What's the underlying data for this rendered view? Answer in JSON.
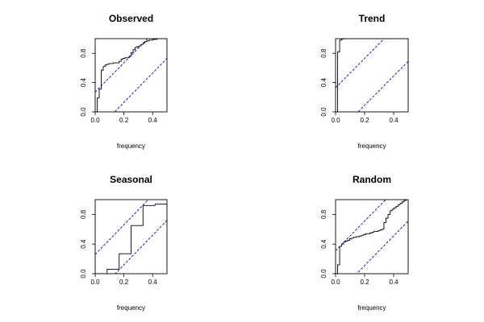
{
  "colors": {
    "frame": "#000000",
    "step": "#000000",
    "bound": "#0000cc",
    "background": "#ffffff"
  },
  "chart_data": [
    {
      "type": "line",
      "title": "Observed",
      "xlabel": "frequency",
      "ylabel": "",
      "xlim": [
        0,
        0.5
      ],
      "ylim": [
        0,
        1
      ],
      "xticks": [
        "0.0",
        "0.2",
        "0.4"
      ],
      "yticks": [
        "0.0",
        "0.4",
        "0.8"
      ],
      "series": [
        {
          "kind": "step",
          "x": [
            0.0,
            0.014,
            0.028,
            0.042,
            0.056,
            0.069,
            0.083,
            0.097,
            0.111,
            0.125,
            0.139,
            0.153,
            0.167,
            0.181,
            0.194,
            0.208,
            0.222,
            0.236,
            0.25,
            0.264,
            0.278,
            0.292,
            0.306,
            0.319,
            0.333,
            0.347,
            0.361,
            0.375,
            0.389,
            0.403,
            0.417,
            0.431,
            0.444,
            0.458,
            0.472,
            0.486,
            0.5
          ],
          "y": [
            0.0,
            0.19,
            0.31,
            0.57,
            0.62,
            0.64,
            0.65,
            0.66,
            0.66,
            0.67,
            0.67,
            0.67,
            0.69,
            0.72,
            0.73,
            0.74,
            0.74,
            0.76,
            0.81,
            0.85,
            0.88,
            0.89,
            0.9,
            0.92,
            0.94,
            0.96,
            0.97,
            0.98,
            0.98,
            0.99,
            0.99,
            1.0,
            1.0,
            1.0,
            1.0,
            1.0,
            1.0
          ]
        },
        {
          "kind": "bound",
          "x": [
            0,
            0.5
          ],
          "y": [
            0.27,
            1.27
          ]
        },
        {
          "kind": "bound",
          "x": [
            0,
            0.5
          ],
          "y": [
            -0.27,
            0.73
          ]
        }
      ]
    },
    {
      "type": "line",
      "title": "Trend",
      "xlabel": "frequency",
      "ylabel": "",
      "xlim": [
        0,
        0.5
      ],
      "ylim": [
        0,
        1
      ],
      "xticks": [
        "0.0",
        "0.2",
        "0.4"
      ],
      "yticks": [
        "0.0",
        "0.4",
        "0.8"
      ],
      "series": [
        {
          "kind": "step",
          "x": [
            0.0,
            0.014,
            0.028,
            0.042,
            0.056,
            0.5
          ],
          "y": [
            0.0,
            0.82,
            0.98,
            0.995,
            1.0,
            1.0
          ]
        },
        {
          "kind": "bound",
          "x": [
            0,
            0.5
          ],
          "y": [
            0.33,
            1.33
          ]
        },
        {
          "kind": "bound",
          "x": [
            0,
            0.5
          ],
          "y": [
            -0.31,
            0.69
          ]
        }
      ]
    },
    {
      "type": "line",
      "title": "Seasonal",
      "xlabel": "frequency",
      "ylabel": "",
      "xlim": [
        0,
        0.5
      ],
      "ylim": [
        0,
        1
      ],
      "xticks": [
        "0.0",
        "0.2",
        "0.4"
      ],
      "yticks": [
        "0.0",
        "0.4",
        "0.8"
      ],
      "series": [
        {
          "kind": "step",
          "x": [
            0.0,
            0.083,
            0.167,
            0.25,
            0.333,
            0.417,
            0.5
          ],
          "y": [
            0.0,
            0.06,
            0.27,
            0.65,
            0.92,
            0.94,
            0.94
          ]
        },
        {
          "kind": "bound",
          "x": [
            0,
            0.5
          ],
          "y": [
            0.26,
            1.26
          ]
        },
        {
          "kind": "bound",
          "x": [
            0,
            0.5
          ],
          "y": [
            -0.28,
            0.72
          ]
        }
      ]
    },
    {
      "type": "line",
      "title": "Random",
      "xlabel": "frequency",
      "ylabel": "",
      "xlim": [
        0,
        0.5
      ],
      "ylim": [
        0,
        1
      ],
      "xticks": [
        "0.0",
        "0.2",
        "0.4"
      ],
      "yticks": [
        "0.0",
        "0.4",
        "0.8"
      ],
      "series": [
        {
          "kind": "step",
          "x": [
            0.0,
            0.014,
            0.028,
            0.042,
            0.056,
            0.069,
            0.083,
            0.097,
            0.111,
            0.125,
            0.139,
            0.153,
            0.167,
            0.181,
            0.194,
            0.208,
            0.222,
            0.236,
            0.25,
            0.264,
            0.278,
            0.292,
            0.306,
            0.319,
            0.333,
            0.347,
            0.361,
            0.375,
            0.389,
            0.403,
            0.417,
            0.431,
            0.444,
            0.458,
            0.472,
            0.486,
            0.5
          ],
          "y": [
            0.0,
            0.12,
            0.37,
            0.4,
            0.43,
            0.44,
            0.45,
            0.47,
            0.48,
            0.49,
            0.5,
            0.5,
            0.51,
            0.52,
            0.53,
            0.54,
            0.54,
            0.55,
            0.56,
            0.57,
            0.57,
            0.58,
            0.59,
            0.6,
            0.69,
            0.75,
            0.8,
            0.85,
            0.87,
            0.89,
            0.91,
            0.93,
            0.95,
            0.97,
            0.99,
            1.0,
            1.0
          ]
        },
        {
          "kind": "bound",
          "x": [
            0,
            0.5
          ],
          "y": [
            0.31,
            1.31
          ]
        },
        {
          "kind": "bound",
          "x": [
            0,
            0.5
          ],
          "y": [
            -0.29,
            0.71
          ]
        }
      ]
    }
  ]
}
